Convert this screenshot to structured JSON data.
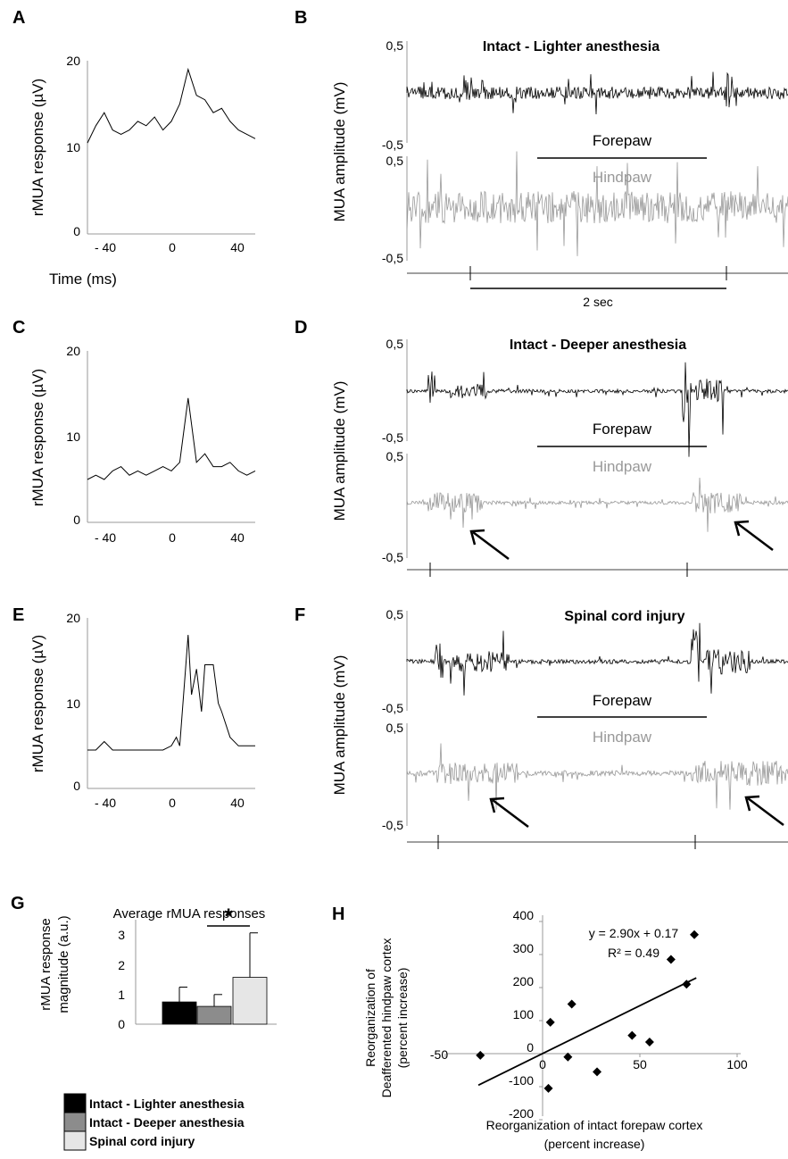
{
  "panel_labels": [
    "A",
    "B",
    "C",
    "D",
    "E",
    "F",
    "G",
    "H"
  ],
  "colors": {
    "forepaw_trace": "#000000",
    "hindpaw_trace": "#999999",
    "intact_lighter": "#000000",
    "intact_deeper": "#8c8c8c",
    "spinal_cord_injury": "#e6e6e6"
  },
  "chart_data": [
    {
      "id": "A",
      "type": "line",
      "xlabel": "Time (ms)",
      "ylabel": "rMUA response (µV)",
      "xlim": [
        -50,
        50
      ],
      "ylim": [
        0,
        20
      ],
      "xticks": [
        "- 40",
        "0",
        "40"
      ],
      "yticks": [
        "0",
        "10",
        "20"
      ],
      "x": [
        -50,
        -45,
        -40,
        -35,
        -30,
        -25,
        -20,
        -15,
        -10,
        -5,
        0,
        5,
        10,
        15,
        20,
        25,
        30,
        35,
        40,
        45,
        50
      ],
      "y": [
        10.5,
        12.5,
        14,
        12,
        11.5,
        12,
        13,
        12.5,
        13.5,
        12,
        13,
        15,
        19,
        16,
        15.5,
        14,
        14.5,
        13,
        12,
        11.5,
        11
      ]
    },
    {
      "id": "B",
      "type": "line",
      "title": "Intact - Lighter anesthesia",
      "ylabel": "MUA amplitude (mV)",
      "yticks": [
        "0,5",
        "-0,5",
        "0,5",
        "-0,5"
      ],
      "series": [
        {
          "name": "Forepaw",
          "ylim": [
            -0.5,
            0.5
          ]
        },
        {
          "name": "Hindpaw",
          "ylim": [
            -0.5,
            0.5
          ]
        }
      ],
      "scale_bar": "2 sec"
    },
    {
      "id": "C",
      "type": "line",
      "ylabel": "rMUA response (µV)",
      "xlim": [
        -50,
        50
      ],
      "ylim": [
        0,
        20
      ],
      "xticks": [
        "- 40",
        "0",
        "40"
      ],
      "yticks": [
        "0",
        "10",
        "20"
      ],
      "x": [
        -50,
        -45,
        -40,
        -35,
        -30,
        -25,
        -20,
        -15,
        -10,
        -5,
        0,
        5,
        10,
        15,
        20,
        25,
        30,
        35,
        40,
        45,
        50
      ],
      "y": [
        5,
        5.5,
        5,
        6,
        6.5,
        5.5,
        6,
        5.5,
        6,
        6.5,
        6,
        7,
        14.5,
        7,
        8,
        6.5,
        6.5,
        7,
        6,
        5.5,
        6
      ]
    },
    {
      "id": "D",
      "type": "line",
      "title": "Intact - Deeper anesthesia",
      "ylabel": "MUA amplitude (mV)",
      "yticks": [
        "0,5",
        "-0,5",
        "0,5",
        "-0,5"
      ],
      "series": [
        {
          "name": "Forepaw",
          "ylim": [
            -0.5,
            0.5
          ]
        },
        {
          "name": "Hindpaw",
          "ylim": [
            -0.5,
            0.5
          ]
        }
      ]
    },
    {
      "id": "E",
      "type": "line",
      "ylabel": "rMUA response (µV)",
      "xlim": [
        -50,
        50
      ],
      "ylim": [
        0,
        20
      ],
      "xticks": [
        "- 40",
        "0",
        "40"
      ],
      "yticks": [
        "0",
        "10",
        "20"
      ],
      "x": [
        -50,
        -45,
        -40,
        -35,
        -30,
        -25,
        -20,
        -15,
        -10,
        -5,
        0,
        3,
        5,
        10,
        12,
        15,
        18,
        20,
        25,
        28,
        30,
        35,
        40,
        45,
        50
      ],
      "y": [
        4.5,
        4.5,
        5.5,
        4.5,
        4.5,
        4.5,
        4.5,
        4.5,
        4.5,
        4.5,
        5,
        6,
        5,
        18,
        11,
        14,
        9,
        14.5,
        14.5,
        10,
        9,
        6,
        5,
        5,
        5
      ]
    },
    {
      "id": "F",
      "type": "line",
      "title": "Spinal cord injury",
      "ylabel": "MUA amplitude (mV)",
      "yticks": [
        "0,5",
        "-0,5",
        "0,5",
        "-0,5"
      ],
      "series": [
        {
          "name": "Forepaw",
          "ylim": [
            -0.5,
            0.5
          ]
        },
        {
          "name": "Hindpaw",
          "ylim": [
            -0.5,
            0.5
          ]
        }
      ]
    },
    {
      "id": "G",
      "type": "bar",
      "title": "Average rMUA responses",
      "ylabel": "rMUA response magnitude (a.u.)",
      "ylim": [
        0,
        3.5
      ],
      "yticks": [
        "0",
        "1",
        "2",
        "3"
      ],
      "categories": [
        "Intact - Lighter anesthesia",
        "Intact - Deeper anesthesia",
        "Spinal cord injury"
      ],
      "values": [
        0.75,
        0.6,
        1.58
      ],
      "errors": [
        0.5,
        0.4,
        1.5
      ],
      "significance": "*"
    },
    {
      "id": "H",
      "type": "scatter",
      "xlabel": "Reorganization of intact forepaw cortex (percent increase)",
      "ylabel": "Reorganization of Deafferented hindpaw cortex (percent increase)",
      "xlim": [
        -50,
        125
      ],
      "ylim": [
        -200,
        400
      ],
      "xticks": [
        "-50",
        "0",
        "50",
        "100"
      ],
      "yticks": [
        "-200",
        "-100",
        "0",
        "100",
        "200",
        "300",
        "400"
      ],
      "x": [
        -32,
        4,
        3,
        15,
        13,
        28,
        46,
        55,
        66,
        74,
        78
      ],
      "y": [
        -5,
        95,
        -105,
        150,
        -10,
        -55,
        55,
        35,
        285,
        210,
        360
      ],
      "fit_equation": "y = 2.90x + 0.17",
      "r_squared": "R² = 0.49",
      "fit": {
        "slope": 2.9,
        "intercept": 0.17,
        "x_range": [
          -33,
          79
        ]
      }
    }
  ]
}
